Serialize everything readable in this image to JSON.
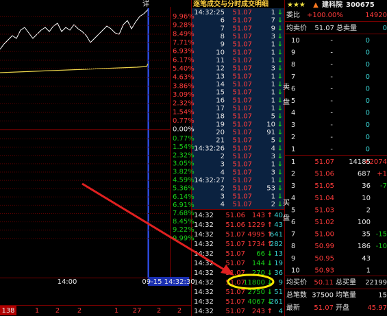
{
  "left_chart": {
    "detail_label": "详",
    "pct_labels": [
      "9.96%",
      "9.28%",
      "8.49%",
      "7.71%",
      "6.93%",
      "6.17%",
      "5.40%",
      "4.63%",
      "3.86%",
      "3.09%",
      "2.32%",
      "1.54%",
      "0.77%",
      "0.00%",
      "0.77%",
      "1.54%",
      "2.32%",
      "3.05%",
      "3.82%",
      "4.59%",
      "5.36%",
      "6.14%",
      "6.91%",
      "7.68%",
      "8.45%",
      "9.22%",
      "9.99%"
    ],
    "time_label": "14:00",
    "cursor_time": "09-15 14:32:30",
    "bottom_bar": [
      "138",
      "1",
      "2",
      "2",
      "1",
      "27",
      "2",
      "2"
    ]
  },
  "ticks_panel": {
    "title": "逐笔成交与分时成交明细",
    "rows": [
      [
        "14:32:25",
        "51.07",
        "1",
        "↓"
      ],
      [
        "6",
        "51.07",
        "7",
        "↓"
      ],
      [
        "7",
        "51.07",
        "9",
        "↓"
      ],
      [
        "8",
        "51.07",
        "3",
        "↓"
      ],
      [
        "9",
        "51.07",
        "1",
        "↓"
      ],
      [
        "10",
        "51.07",
        "1",
        "↓"
      ],
      [
        "11",
        "51.07",
        "1",
        "↓"
      ],
      [
        "12",
        "51.07",
        "3",
        "↓"
      ],
      [
        "13",
        "51.07",
        "1",
        "↓"
      ],
      [
        "14",
        "51.07",
        "1",
        "↓"
      ],
      [
        "15",
        "51.07",
        "1",
        "↓"
      ],
      [
        "16",
        "51.07",
        "1",
        "↓"
      ],
      [
        "17",
        "51.07",
        "1",
        "↓"
      ],
      [
        "18",
        "51.07",
        "5",
        "↓"
      ],
      [
        "19",
        "51.07",
        "10",
        "↓"
      ],
      [
        "20",
        "51.07",
        "91",
        "↓"
      ],
      [
        "21",
        "51.07",
        "5",
        "↓"
      ],
      [
        "14:32:26",
        "51.07",
        "4",
        "↓"
      ],
      [
        "2",
        "51.07",
        "3",
        "↓"
      ],
      [
        "3",
        "51.07",
        "1",
        "↓"
      ],
      [
        "4",
        "51.07",
        "3",
        "↓"
      ],
      [
        "14:32:27",
        "51.07",
        "1",
        "↓"
      ],
      [
        "2",
        "51.07",
        "53",
        "↓"
      ],
      [
        "3",
        "51.07",
        "1",
        "↓"
      ],
      [
        "4",
        "51.07",
        "2",
        "↓"
      ]
    ]
  },
  "minute_panel": {
    "rows": [
      [
        "14:32",
        "51.06",
        "143",
        "↑",
        "40"
      ],
      [
        "14:32",
        "51.06",
        "1229",
        "↑",
        "43"
      ],
      [
        "14:32",
        "51.07",
        "4995",
        "↑",
        "641"
      ],
      [
        "14:32",
        "51.07",
        "1734",
        "↑",
        "282"
      ],
      [
        "14:32",
        "51.07",
        "66",
        "↓",
        "13"
      ],
      [
        "14:32",
        "51.07",
        "144",
        "↓",
        "19"
      ],
      [
        "14:32",
        "51.07",
        "270",
        "↓",
        "36"
      ],
      [
        "14:32",
        "51.07",
        "11800",
        "↓",
        "9"
      ],
      [
        "14:32",
        "51.07",
        "2750",
        "↓",
        "51"
      ],
      [
        "14:32",
        "51.07",
        "4067",
        "↓",
        "261"
      ],
      [
        "14:32",
        "51.07",
        "243",
        "↑",
        "4"
      ]
    ]
  },
  "quote_panel": {
    "stars": "★★★",
    "arrow": "▲",
    "name": "建科院",
    "code": "300675",
    "ratio_label": "委比",
    "ratio": "+100.00%",
    "ratio_diff": "14920",
    "avg_sell_label": "均卖价",
    "avg_sell": "51.07",
    "total_sell_label": "总卖量",
    "total_sell": "0",
    "sell_side": [
      "卖",
      "盘"
    ],
    "sell_rows": [
      [
        "10",
        "-",
        "0"
      ],
      [
        "9",
        "-",
        "0"
      ],
      [
        "8",
        "-",
        "0"
      ],
      [
        "7",
        "-",
        "0"
      ],
      [
        "6",
        "-",
        "0"
      ],
      [
        "5",
        "-",
        "0"
      ],
      [
        "4",
        "-",
        "0"
      ],
      [
        "3",
        "-",
        "0"
      ],
      [
        "2",
        "-",
        "0"
      ],
      [
        "1",
        "-",
        "0"
      ]
    ],
    "buy_side": [
      "买",
      "盘"
    ],
    "buy_rows": [
      [
        "1",
        "51.07",
        "14185",
        "+2074"
      ],
      [
        "2",
        "51.06",
        "687",
        "+1"
      ],
      [
        "3",
        "51.05",
        "36",
        "-7"
      ],
      [
        "4",
        "51.04",
        "10",
        ""
      ],
      [
        "5",
        "51.03",
        "2",
        ""
      ],
      [
        "6",
        "51.02",
        "100",
        ""
      ],
      [
        "7",
        "51.00",
        "35",
        "-15"
      ],
      [
        "8",
        "50.99",
        "186",
        "-10"
      ],
      [
        "9",
        "50.95",
        "43",
        ""
      ],
      [
        "10",
        "50.93",
        "1",
        ""
      ]
    ],
    "footer": [
      [
        "均买价",
        "50.11",
        "总买量",
        "22199"
      ],
      [
        "总笔数",
        "37500",
        "均笔量",
        "15"
      ],
      [
        "最新",
        "51.07",
        "开盘",
        "45.97"
      ]
    ]
  }
}
